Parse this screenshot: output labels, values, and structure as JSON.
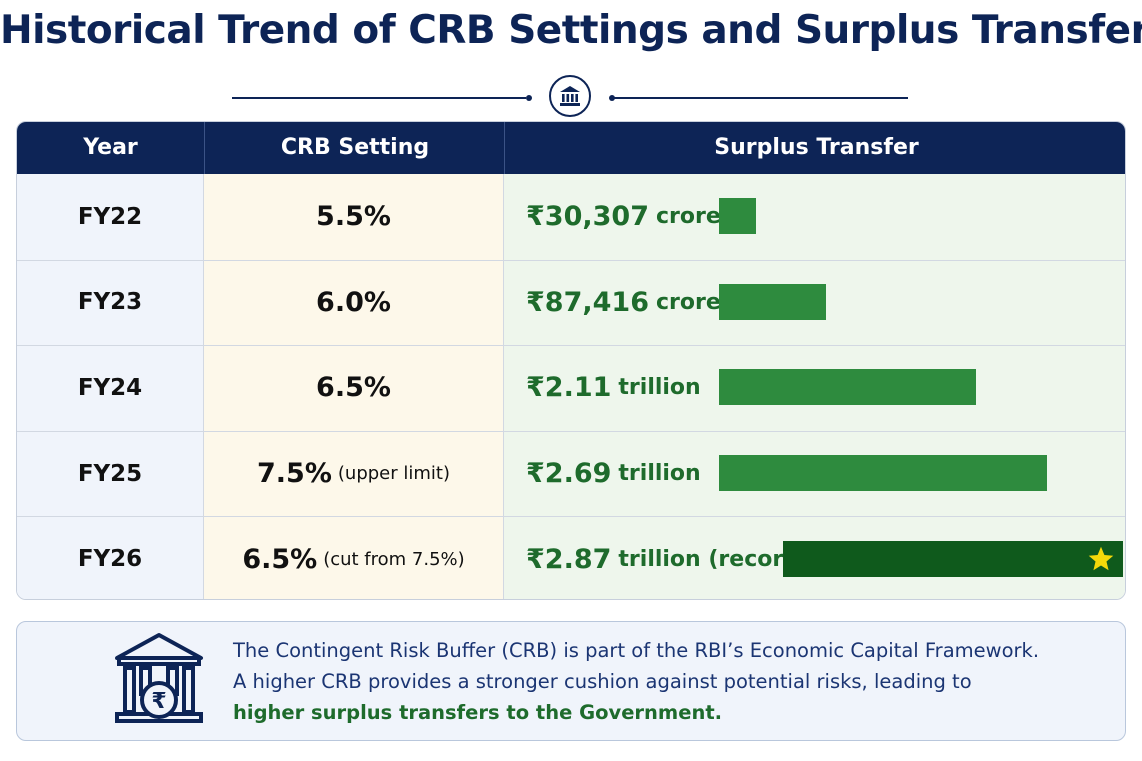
{
  "title": "Historical Trend of CRB Settings and Surplus Transfers",
  "table": {
    "headers": {
      "year": "Year",
      "crb": "CRB Setting",
      "surplus": "Surplus Transfer"
    },
    "rows": [
      {
        "year": "FY22",
        "crb": "5.5%",
        "crb_note": "",
        "amount": "₹30,307",
        "unit": "crore",
        "value_crore": 30307,
        "record": false
      },
      {
        "year": "FY23",
        "crb": "6.0%",
        "crb_note": "",
        "amount": "₹87,416",
        "unit": "crore",
        "value_crore": 87416,
        "record": false
      },
      {
        "year": "FY24",
        "crb": "6.5%",
        "crb_note": "",
        "amount": "₹2.11",
        "unit": "trillion",
        "value_crore": 211000,
        "record": false
      },
      {
        "year": "FY25",
        "crb": "7.5%",
        "crb_note": "(upper limit)",
        "amount": "₹2.69",
        "unit": "trillion",
        "value_crore": 269000,
        "record": false
      },
      {
        "year": "FY26",
        "crb": "6.5%",
        "crb_note": "(cut from 7.5%)",
        "amount": "₹2.87",
        "unit": "trillion (record)",
        "value_crore": 287000,
        "record": true
      }
    ]
  },
  "chart_data": {
    "type": "bar",
    "categories": [
      "FY22",
      "FY23",
      "FY24",
      "FY25",
      "FY26"
    ],
    "series": [
      {
        "values": [
          30307,
          87416,
          211000,
          269000,
          287000
        ]
      }
    ],
    "crb_settings": [
      5.5,
      6.0,
      6.5,
      7.5,
      6.5
    ]
  },
  "info": {
    "line1": "The Contingent Risk Buffer (CRB) is part of the RBI’s Economic Capital Framework.",
    "line2": "A higher CRB provides a stronger cushion against potential risks, leading to",
    "line3": "higher surplus transfers to the Government."
  },
  "icons": {
    "header": "bank-icon",
    "info": "bank-rupee-icon",
    "record": "star-icon"
  },
  "colors": {
    "navy": "#0d2456",
    "bar": "#2e8b3e",
    "record_bar": "#0f5a1c",
    "star": "#f5d90a",
    "text_green": "#1e6b2c"
  }
}
